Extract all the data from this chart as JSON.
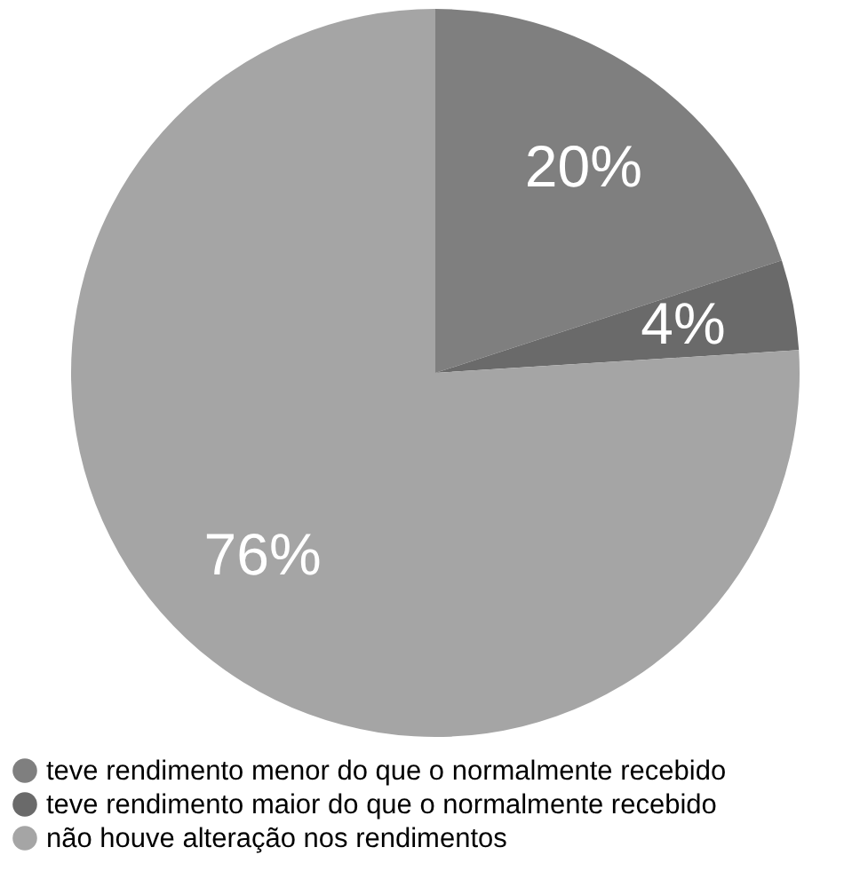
{
  "chart_data": {
    "type": "pie",
    "categories": [
      "teve rendimento menor do que o normalmente recebido",
      "teve rendimento maior do que o normalmente recebido",
      "não houve alteração nos rendimentos"
    ],
    "values": [
      20,
      4,
      76
    ],
    "colors": [
      "#7f7f7f",
      "#6a6a6a",
      "#a5a5a5"
    ],
    "value_labels": [
      "20%",
      "4%",
      "76%"
    ],
    "legend": "bottom left"
  }
}
